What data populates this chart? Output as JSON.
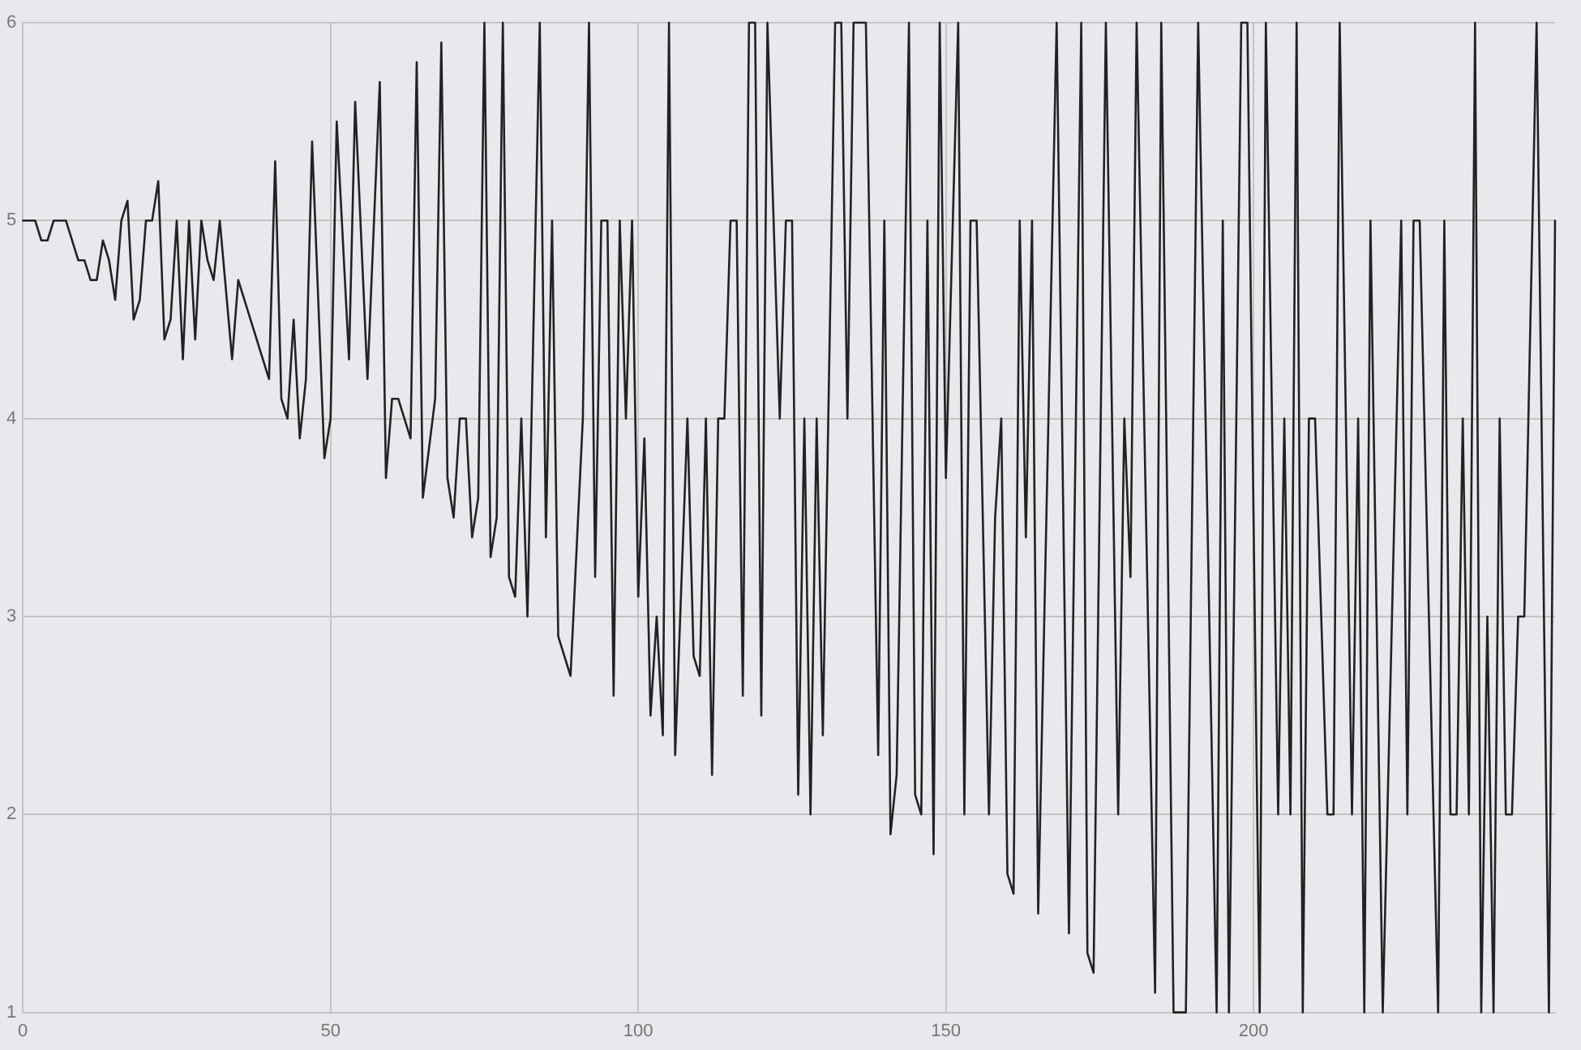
{
  "chart_data": {
    "type": "line",
    "xlim": [
      0,
      249
    ],
    "xticks": [
      0,
      50,
      100,
      150,
      200
    ],
    "ylim": [
      1,
      6
    ],
    "yticks": [
      1,
      2,
      3,
      4,
      5,
      6
    ],
    "grid": true,
    "legend": false,
    "marker": "none",
    "line_style": "solid",
    "series": [
      {
        "color": "#222222",
        "x": [
          0,
          2,
          3,
          4,
          5,
          7,
          9,
          10,
          11,
          12,
          13,
          14,
          15,
          16,
          17,
          18,
          19,
          20,
          21,
          22,
          23,
          24,
          25,
          26,
          27,
          28,
          29,
          30,
          31,
          32,
          34,
          35,
          40,
          41,
          42,
          43,
          44,
          45,
          46,
          47,
          49,
          50,
          51,
          53,
          54,
          56,
          58,
          59,
          60,
          61,
          63,
          64,
          65,
          67,
          68,
          69,
          70,
          71,
          72,
          73,
          74,
          75,
          76,
          77,
          78,
          79,
          80,
          81,
          82,
          84,
          85,
          86,
          87,
          89,
          91,
          92,
          93,
          94,
          95,
          96,
          97,
          98,
          99,
          100,
          101,
          102,
          103,
          104,
          105,
          106,
          108,
          109,
          110,
          111,
          112,
          113,
          114,
          115,
          116,
          117,
          118,
          119,
          120,
          121,
          123,
          124,
          125,
          126,
          127,
          128,
          129,
          130,
          132,
          133,
          134,
          135,
          137,
          139,
          140,
          141,
          142,
          144,
          145,
          146,
          147,
          148,
          149,
          150,
          152,
          153,
          154,
          155,
          157,
          158,
          159,
          160,
          161,
          162,
          163,
          164,
          165,
          168,
          170,
          172,
          173,
          174,
          176,
          178,
          179,
          180,
          181,
          184,
          185,
          187,
          189,
          191,
          194,
          195,
          196,
          198,
          199,
          201,
          202,
          204,
          205,
          206,
          207,
          208,
          209,
          210,
          212,
          213,
          214,
          216,
          217,
          218,
          219,
          221,
          224,
          225,
          226,
          227,
          230,
          231,
          232,
          233,
          234,
          235,
          236,
          237,
          238,
          239,
          240,
          241,
          242,
          243,
          244,
          246,
          248,
          249
        ],
        "values": [
          5,
          5,
          4.9,
          4.9,
          5,
          5,
          4.8,
          4.8,
          4.7,
          4.7,
          4.9,
          4.8,
          4.6,
          5,
          5.1,
          4.5,
          4.6,
          5,
          5,
          5.2,
          4.4,
          4.5,
          5,
          4.3,
          5,
          4.4,
          5,
          4.8,
          4.7,
          5,
          4.3,
          4.7,
          4.2,
          5.3,
          4.1,
          4,
          4.5,
          3.9,
          4.2,
          5.4,
          3.8,
          4,
          5.5,
          4.3,
          5.6,
          4.2,
          5.7,
          3.7,
          4.1,
          4.1,
          3.9,
          5.8,
          3.6,
          4.1,
          5.9,
          3.7,
          3.5,
          4,
          4,
          3.4,
          3.6,
          6,
          3.3,
          3.5,
          6,
          3.2,
          3.1,
          4,
          3,
          6,
          3.4,
          5,
          2.9,
          2.7,
          4,
          6,
          3.2,
          5,
          5,
          2.6,
          5,
          4,
          5,
          3.1,
          3.9,
          2.5,
          3,
          2.4,
          6,
          2.3,
          4,
          2.8,
          2.7,
          4,
          2.2,
          4,
          4,
          5,
          5,
          2.6,
          6,
          6,
          2.5,
          6,
          4,
          5,
          5,
          2.1,
          4,
          2,
          4,
          2.4,
          6,
          6,
          4,
          6,
          6,
          2.3,
          5,
          1.9,
          2.2,
          6,
          2.1,
          2,
          5,
          1.8,
          6,
          3.7,
          6,
          2,
          5,
          5,
          2,
          3.5,
          4,
          1.7,
          1.6,
          5,
          3.4,
          5,
          1.5,
          6,
          1.4,
          6,
          1.3,
          1.2,
          6,
          2,
          4,
          3.2,
          6,
          1.1,
          6,
          1,
          1,
          6,
          1,
          5,
          1,
          6,
          6,
          1,
          6,
          2,
          4,
          2,
          6,
          1,
          4,
          4,
          2,
          2,
          6,
          2,
          4,
          1,
          5,
          1,
          5,
          2,
          5,
          5,
          1,
          5,
          2,
          2,
          4,
          2,
          6,
          1,
          3,
          1,
          4,
          2,
          2,
          3,
          3,
          6,
          1,
          5
        ]
      }
    ]
  }
}
